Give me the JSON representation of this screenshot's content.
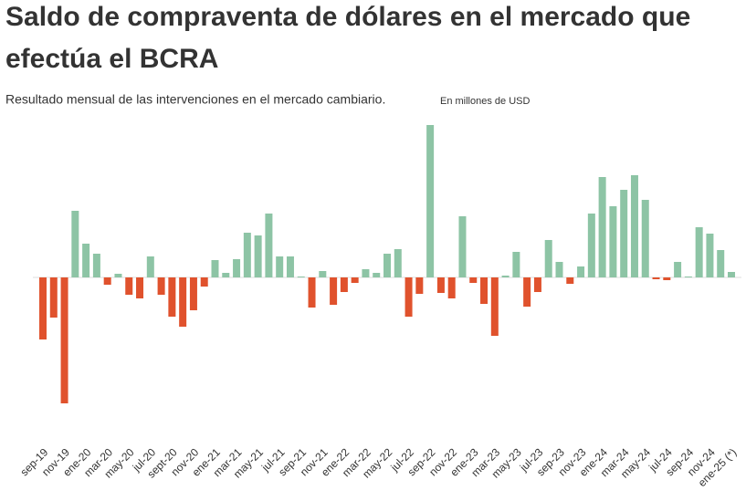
{
  "chart_data": {
    "type": "bar",
    "title": "Saldo de compraventa de dólares en el mercado que efectúa el BCRA",
    "title_lines": [
      "Saldo de compraventa de dólares en el mercado que",
      "efectúa el BCRA"
    ],
    "subtitle": "Resultado  mensual de las intervenciones en el mercado cambiario.",
    "unit_note": "En millones de USD",
    "categories": [
      "sep-19",
      null,
      "nov-19",
      null,
      "ene-20",
      null,
      "mar-20",
      null,
      "may-20",
      null,
      "jul-20",
      null,
      "sept-20",
      null,
      "nov-20",
      null,
      "ene-21",
      null,
      "mar-21",
      null,
      "may-21",
      null,
      "jul-21",
      null,
      "sep-21",
      null,
      "nov-21",
      null,
      "ene-22",
      null,
      "mar-22",
      null,
      "may-22",
      null,
      "jul-22",
      null,
      "sep-22",
      null,
      "nov-22",
      null,
      "ene-23",
      null,
      "mar-23",
      null,
      "may-23",
      null,
      "jul-23",
      null,
      "sep-23",
      null,
      "nov-23",
      null,
      "ene-24",
      null,
      "mar-24",
      null,
      "may-24",
      null,
      "jul-24",
      null,
      "sep-24",
      null,
      "nov-24",
      null,
      "ene-25 (*)"
    ],
    "values": [
      -2040,
      -1320,
      -4140,
      2190,
      1110,
      780,
      -240,
      120,
      -570,
      -690,
      690,
      -570,
      -1290,
      -1620,
      -1080,
      -300,
      570,
      150,
      600,
      1470,
      1380,
      2100,
      690,
      690,
      30,
      -990,
      210,
      -900,
      -480,
      -180,
      270,
      150,
      780,
      930,
      -1290,
      -540,
      5010,
      -510,
      -690,
      2010,
      -180,
      -870,
      -1920,
      60,
      840,
      -960,
      -480,
      1230,
      510,
      -210,
      360,
      2100,
      3300,
      2340,
      2880,
      3360,
      2550,
      -60,
      -90,
      510,
      30,
      1650,
      1440,
      900,
      180
    ],
    "positive_color": "#8dc4a5",
    "negative_color": "#e0522d"
  }
}
